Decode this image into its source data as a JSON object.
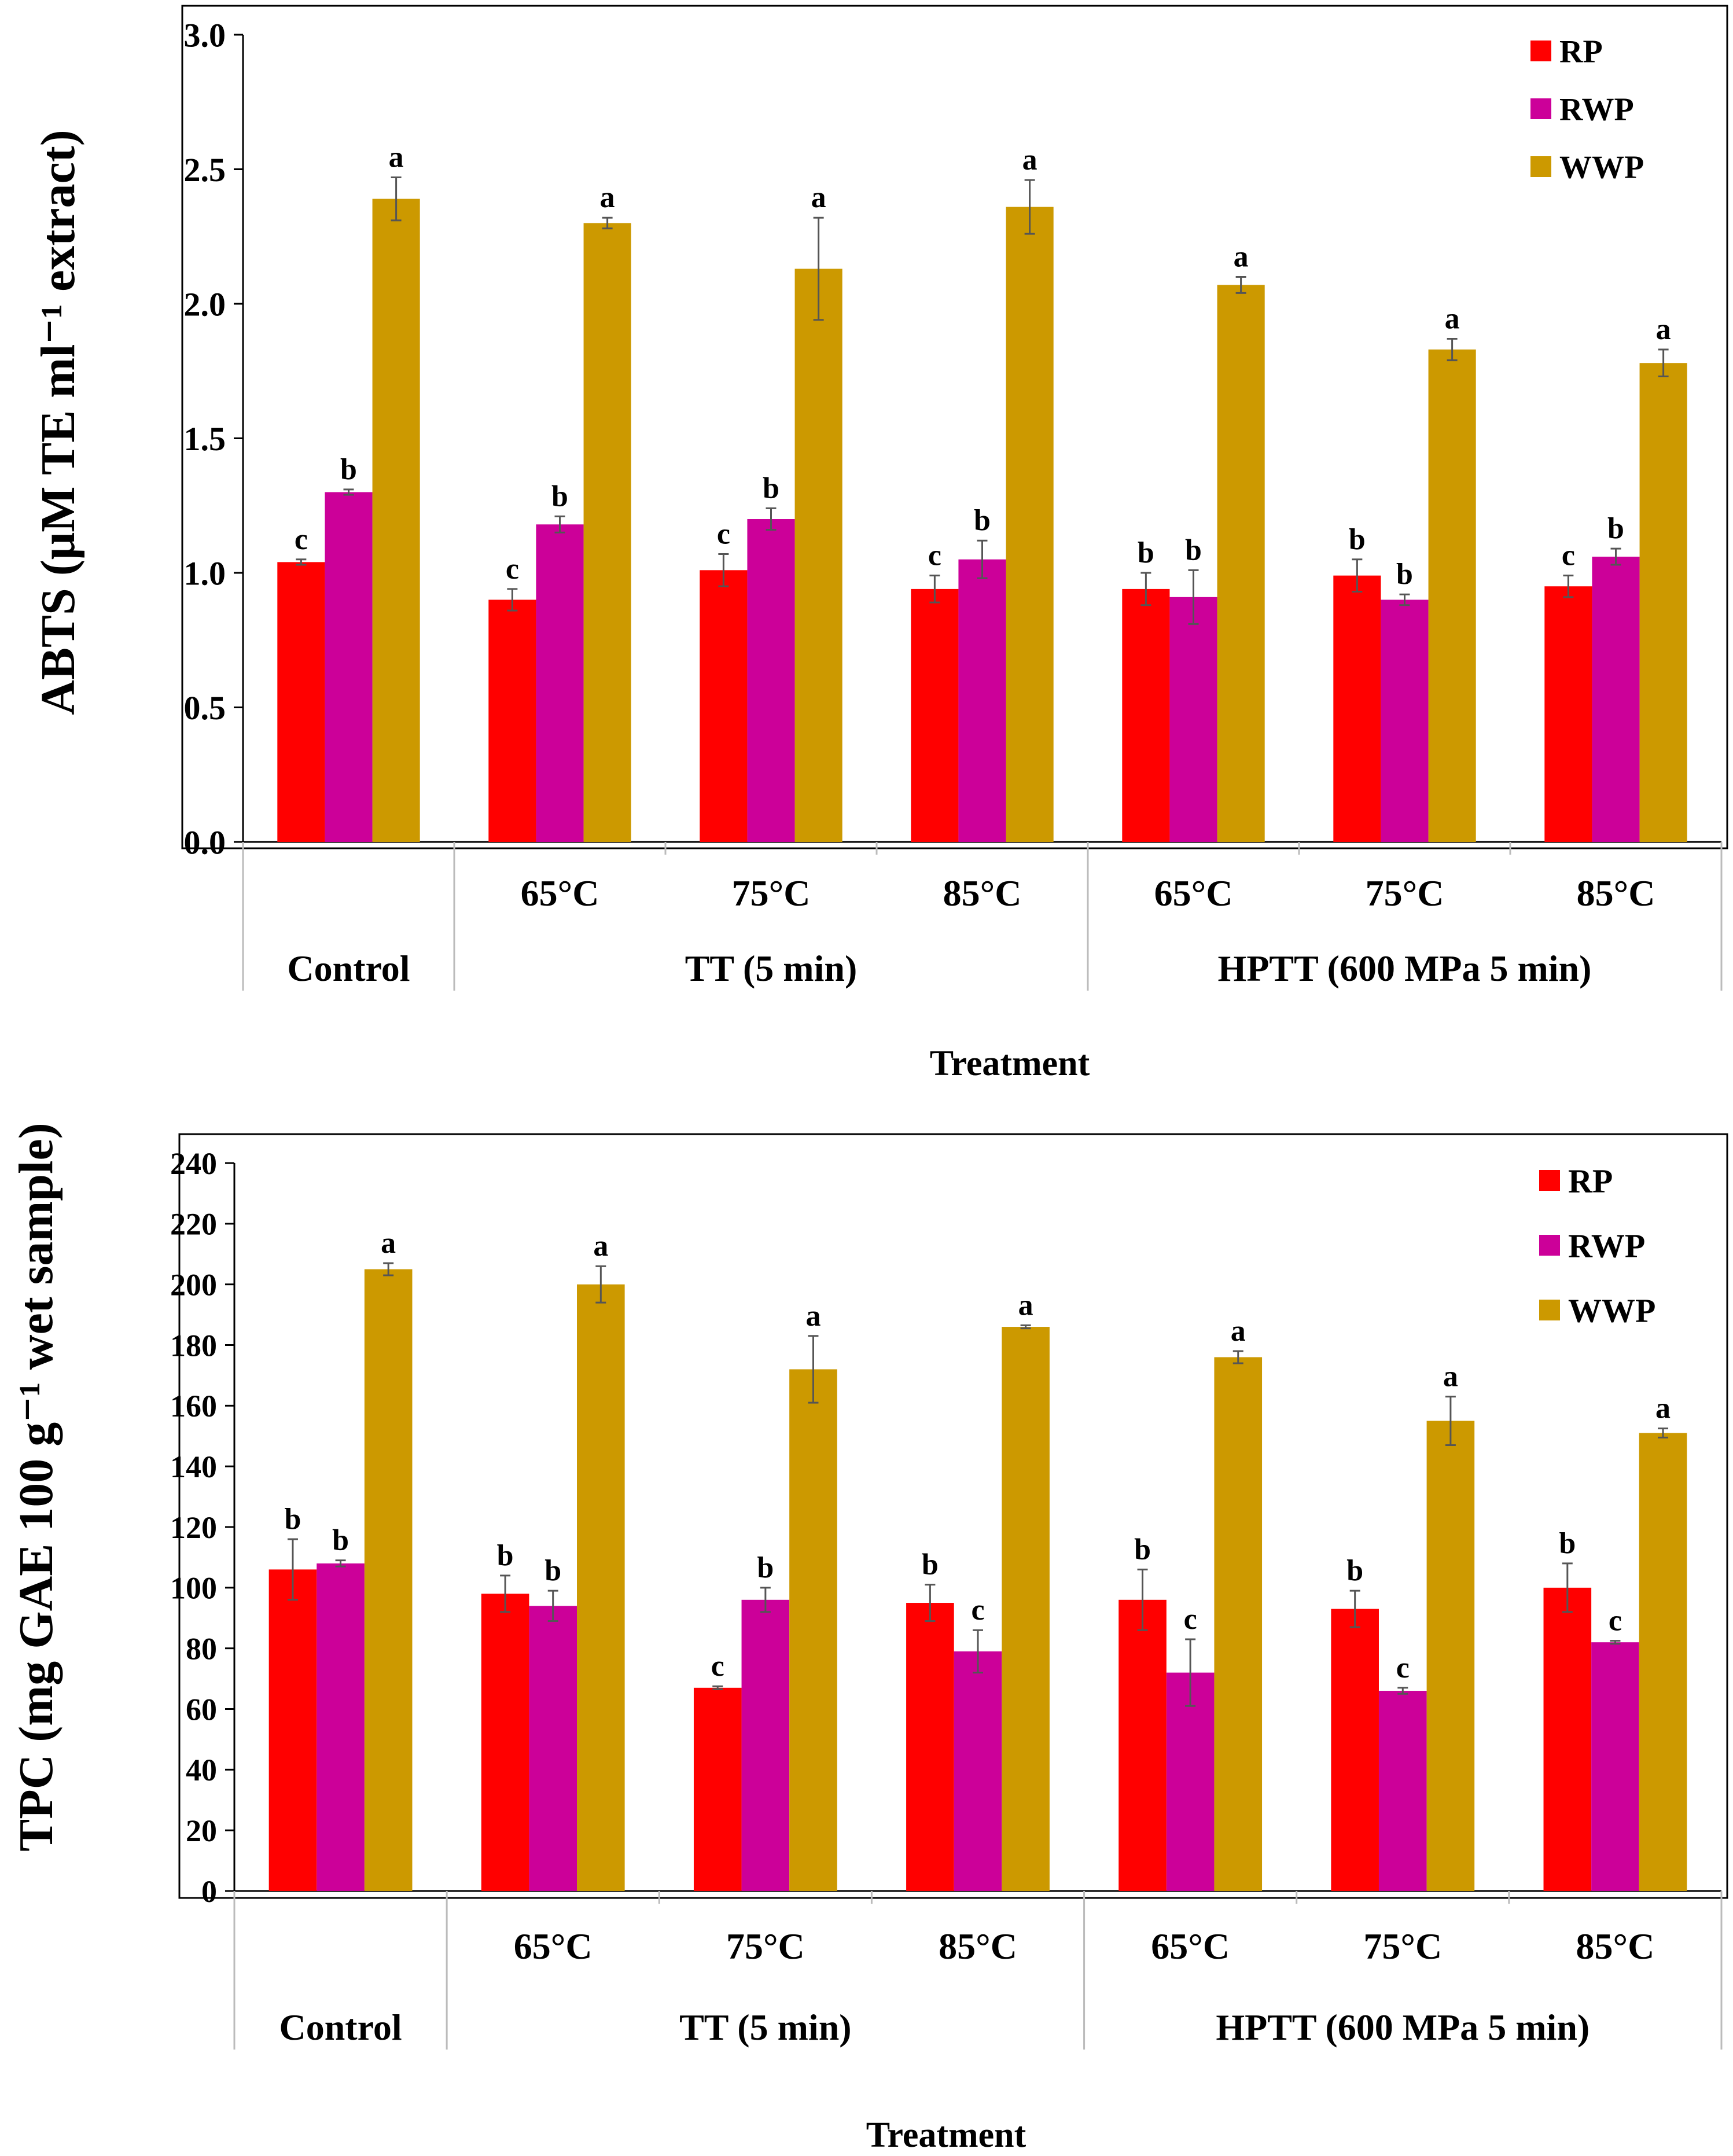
{
  "colors": {
    "RP": "#ff0000",
    "RWP": "#cc0099",
    "WWP": "#cc9900",
    "axis": "#000000",
    "error": "#555555"
  },
  "chart_data": [
    {
      "type": "bar",
      "ylabel": "ABTS (μM TE ml⁻¹ extract)",
      "xlabel": "Treatment",
      "ylim": [
        0,
        3.0
      ],
      "ytick_step": 0.5,
      "ytick_labels": [
        "0.0",
        "0.5",
        "1.0",
        "1.5",
        "2.0",
        "2.5",
        "3.0"
      ],
      "legend": [
        "RP",
        "RWP",
        "WWP"
      ],
      "legend_position": "top-right",
      "categories": [
        "",
        "65°C",
        "75°C",
        "85°C",
        "65°C",
        "75°C",
        "85°C"
      ],
      "groups": [
        {
          "label": "Control",
          "span": 1
        },
        {
          "label": "TT (5 min)",
          "span": 3
        },
        {
          "label": "HPTT (600 MPa 5 min)",
          "span": 3
        }
      ],
      "series": [
        {
          "name": "RP",
          "values": [
            1.04,
            0.9,
            1.01,
            0.94,
            0.94,
            0.99,
            0.95
          ],
          "errors": [
            0.01,
            0.04,
            0.06,
            0.05,
            0.06,
            0.06,
            0.04
          ],
          "letters": [
            "c",
            "c",
            "c",
            "c",
            "b",
            "b",
            "c"
          ]
        },
        {
          "name": "RWP",
          "values": [
            1.3,
            1.18,
            1.2,
            1.05,
            0.91,
            0.9,
            1.06
          ],
          "errors": [
            0.01,
            0.03,
            0.04,
            0.07,
            0.1,
            0.02,
            0.03
          ],
          "letters": [
            "b",
            "b",
            "b",
            "b",
            "b",
            "b",
            "b"
          ]
        },
        {
          "name": "WWP",
          "values": [
            2.39,
            2.3,
            2.13,
            2.36,
            2.07,
            1.83,
            1.78
          ],
          "errors": [
            0.08,
            0.02,
            0.19,
            0.1,
            0.03,
            0.04,
            0.05
          ],
          "letters": [
            "a",
            "a",
            "a",
            "a",
            "a",
            "a",
            "a"
          ]
        }
      ]
    },
    {
      "type": "bar",
      "ylabel": "TPC (mg GAE 100 g⁻¹ wet sample)",
      "xlabel": "Treatment",
      "ylim": [
        0,
        240
      ],
      "ytick_step": 20,
      "ytick_labels": [
        "0",
        "20",
        "40",
        "60",
        "80",
        "100",
        "120",
        "140",
        "160",
        "180",
        "200",
        "220",
        "240"
      ],
      "legend": [
        "RP",
        "RWP",
        "WWP"
      ],
      "legend_position": "top-right",
      "categories": [
        "",
        "65°C",
        "75°C",
        "85°C",
        "65°C",
        "75°C",
        "85°C"
      ],
      "groups": [
        {
          "label": "Control",
          "span": 1
        },
        {
          "label": "TT (5 min)",
          "span": 3
        },
        {
          "label": "HPTT (600 MPa 5 min)",
          "span": 3
        }
      ],
      "series": [
        {
          "name": "RP",
          "values": [
            106,
            98,
            67,
            95,
            96,
            93,
            100
          ],
          "errors": [
            10,
            6,
            0.5,
            6,
            10,
            6,
            8
          ],
          "letters": [
            "b",
            "b",
            "c",
            "b",
            "b",
            "b",
            "b"
          ]
        },
        {
          "name": "RWP",
          "values": [
            108,
            94,
            96,
            79,
            72,
            66,
            82
          ],
          "errors": [
            1,
            5,
            4,
            7,
            11,
            1,
            0.5
          ],
          "letters": [
            "b",
            "b",
            "b",
            "c",
            "c",
            "c",
            "c"
          ]
        },
        {
          "name": "WWP",
          "values": [
            205,
            200,
            172,
            186,
            176,
            155,
            151
          ],
          "errors": [
            2,
            6,
            11,
            0.5,
            2,
            8,
            1.5
          ],
          "letters": [
            "a",
            "a",
            "a",
            "a",
            "a",
            "a",
            "a"
          ]
        }
      ]
    }
  ]
}
